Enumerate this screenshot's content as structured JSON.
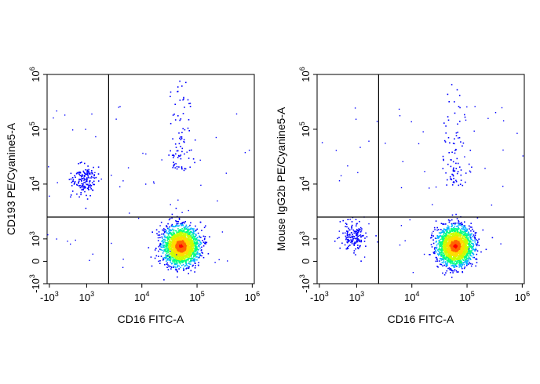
{
  "chart_data": [
    {
      "type": "scatter",
      "style": "density-dot-plot",
      "xlabel": "CD16 FITC-A",
      "ylabel": "CD193 PE/Cyanine5-A",
      "x_scale": "biexponential",
      "y_scale": "biexponential",
      "x_ticks": [
        {
          "value": -1000,
          "base": "-10",
          "exp": "3"
        },
        {
          "value": 1000,
          "base": "10",
          "exp": "3"
        },
        {
          "value": 10000,
          "base": "10",
          "exp": "4"
        },
        {
          "value": 100000,
          "base": "10",
          "exp": "5"
        },
        {
          "value": 1000000,
          "base": "10",
          "exp": "6"
        }
      ],
      "y_ticks": [
        {
          "value": -1000,
          "base": "-10",
          "exp": "3"
        },
        {
          "value": 0,
          "base": "0",
          "exp": ""
        },
        {
          "value": 1000,
          "base": "10",
          "exp": "3"
        },
        {
          "value": 10000,
          "base": "10",
          "exp": "4"
        },
        {
          "value": 100000,
          "base": "10",
          "exp": "5"
        },
        {
          "value": 1000000,
          "base": "10",
          "exp": "6"
        }
      ],
      "gate": {
        "x": 2500,
        "y": 2500
      },
      "populations": [
        {
          "center": [
            50000,
            700
          ],
          "spread": "large",
          "density": "high"
        },
        {
          "center": [
            800,
            12000
          ],
          "spread": "small",
          "density": "medium"
        },
        {
          "center": [
            50000,
            15000
          ],
          "spread": "scattered",
          "density": "low"
        }
      ],
      "grid": false,
      "colormap": [
        "#0000ff",
        "#00b4ff",
        "#00ff80",
        "#c8ff00",
        "#ffdc00",
        "#ff6400",
        "#ff0000"
      ]
    },
    {
      "type": "scatter",
      "style": "density-dot-plot",
      "xlabel": "CD16 FITC-A",
      "ylabel": "Mouse IgG2b PE/Cyanine5-A",
      "x_scale": "biexponential",
      "y_scale": "biexponential",
      "x_ticks": [
        {
          "value": -1000,
          "base": "-10",
          "exp": "3"
        },
        {
          "value": 1000,
          "base": "10",
          "exp": "3"
        },
        {
          "value": 10000,
          "base": "10",
          "exp": "4"
        },
        {
          "value": 100000,
          "base": "10",
          "exp": "5"
        },
        {
          "value": 1000000,
          "base": "10",
          "exp": "6"
        }
      ],
      "y_ticks": [
        {
          "value": -1000,
          "base": "-10",
          "exp": "3"
        },
        {
          "value": 0,
          "base": "0",
          "exp": ""
        },
        {
          "value": 1000,
          "base": "10",
          "exp": "3"
        },
        {
          "value": 10000,
          "base": "10",
          "exp": "4"
        },
        {
          "value": 100000,
          "base": "10",
          "exp": "5"
        },
        {
          "value": 1000000,
          "base": "10",
          "exp": "6"
        }
      ],
      "gate": {
        "x": 2500,
        "y": 2500
      },
      "populations": [
        {
          "center": [
            60000,
            700
          ],
          "spread": "large",
          "density": "high"
        },
        {
          "center": [
            800,
            1200
          ],
          "spread": "small",
          "density": "medium"
        },
        {
          "center": [
            60000,
            8000
          ],
          "spread": "scattered",
          "density": "low"
        }
      ],
      "grid": false,
      "colormap": [
        "#0000ff",
        "#00b4ff",
        "#00ff80",
        "#c8ff00",
        "#ffdc00",
        "#ff6400",
        "#ff0000"
      ]
    }
  ]
}
